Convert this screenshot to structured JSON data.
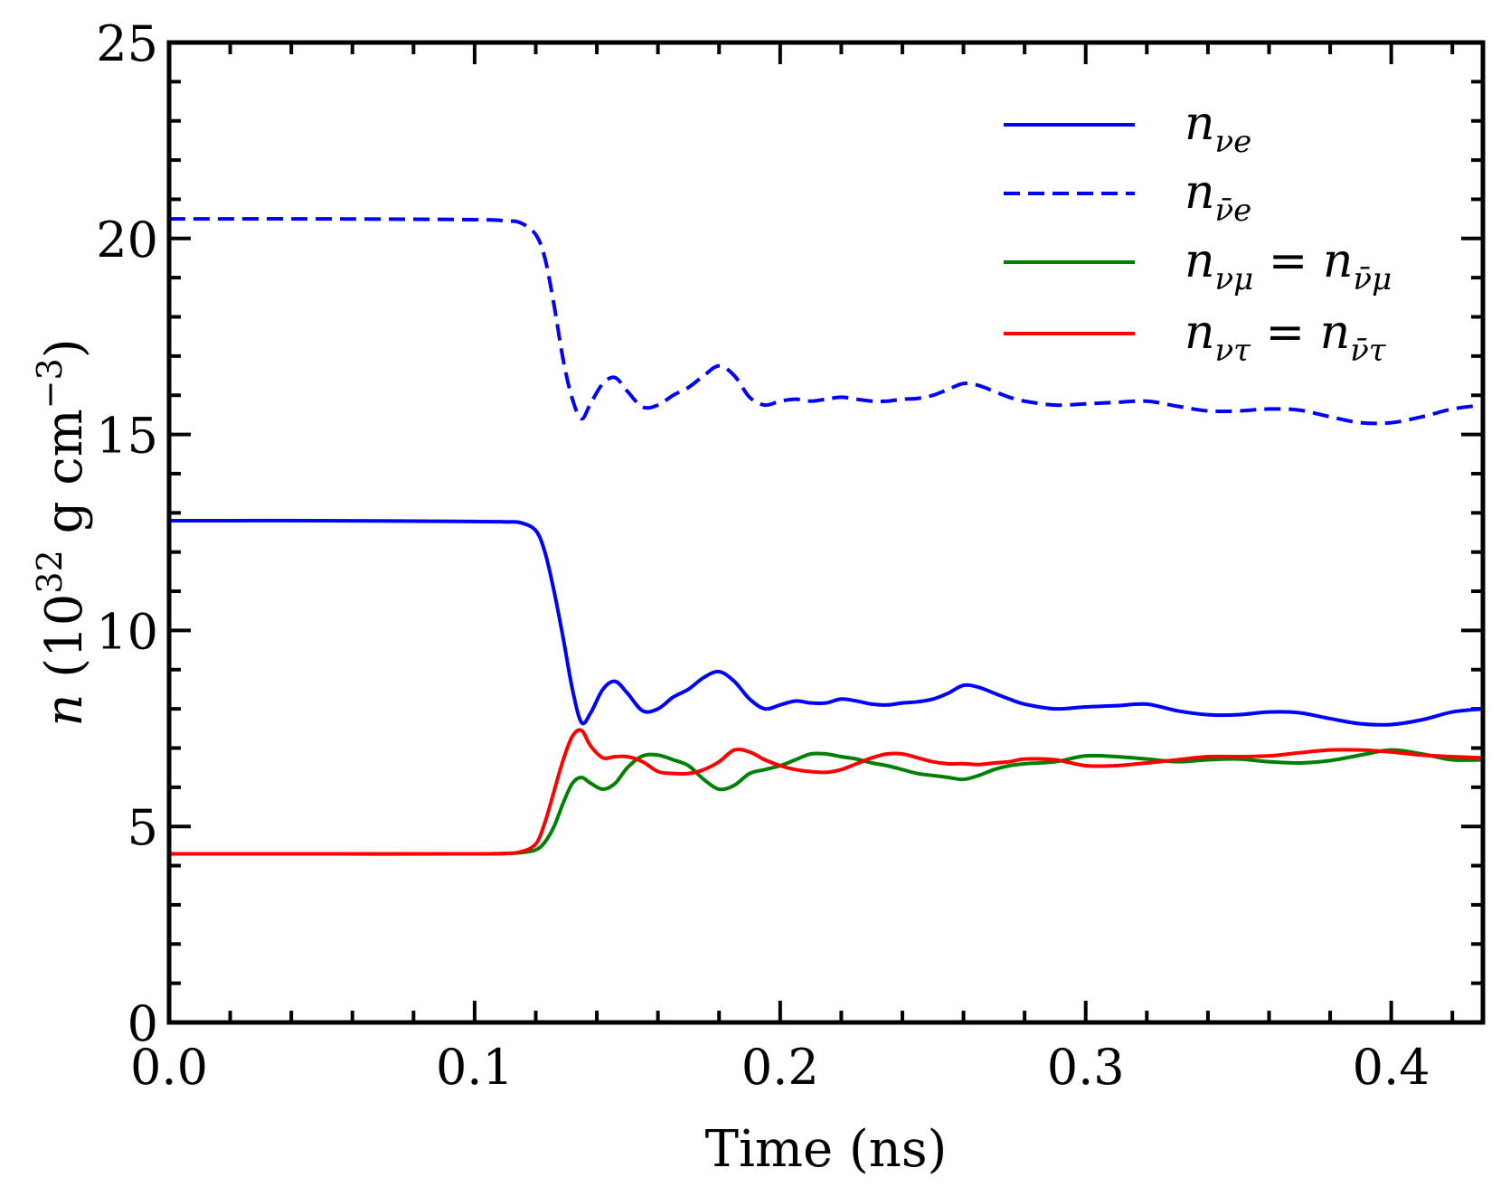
{
  "chart_data": {
    "type": "line",
    "title": "",
    "xlabel": "Time (ns)",
    "ylabel": "n (10^32 g cm^-3)",
    "xlim": [
      0.0,
      0.43
    ],
    "ylim": [
      0,
      25
    ],
    "xticks": [
      0.0,
      0.1,
      0.2,
      0.3,
      0.4
    ],
    "xtick_labels": [
      "0.0",
      "0.1",
      "0.2",
      "0.3",
      "0.4"
    ],
    "yticks": [
      0,
      5,
      10,
      15,
      20,
      25
    ],
    "ytick_labels": [
      "0",
      "5",
      "10",
      "15",
      "20",
      "25"
    ],
    "grid": false,
    "legend_position": "top-right",
    "series": [
      {
        "name": "n_νe",
        "label_base": "n",
        "label_sub": "νe",
        "color": "#0000ff",
        "style": "solid",
        "x": [
          0.0,
          0.05,
          0.1,
          0.11,
          0.115,
          0.12,
          0.123,
          0.126,
          0.129,
          0.132,
          0.135,
          0.138,
          0.142,
          0.146,
          0.15,
          0.155,
          0.16,
          0.165,
          0.17,
          0.175,
          0.18,
          0.185,
          0.19,
          0.195,
          0.2,
          0.205,
          0.21,
          0.215,
          0.22,
          0.225,
          0.23,
          0.235,
          0.24,
          0.245,
          0.25,
          0.255,
          0.26,
          0.265,
          0.27,
          0.275,
          0.28,
          0.29,
          0.3,
          0.31,
          0.32,
          0.33,
          0.34,
          0.35,
          0.36,
          0.37,
          0.38,
          0.39,
          0.4,
          0.41,
          0.42,
          0.43
        ],
        "y": [
          12.8,
          12.8,
          12.78,
          12.77,
          12.75,
          12.55,
          12.0,
          11.0,
          9.8,
          8.5,
          7.65,
          7.9,
          8.5,
          8.7,
          8.4,
          7.95,
          8.0,
          8.3,
          8.5,
          8.8,
          8.95,
          8.7,
          8.25,
          8.0,
          8.1,
          8.2,
          8.15,
          8.15,
          8.25,
          8.2,
          8.12,
          8.1,
          8.15,
          8.18,
          8.25,
          8.4,
          8.6,
          8.55,
          8.4,
          8.25,
          8.12,
          8.0,
          8.05,
          8.08,
          8.12,
          7.95,
          7.85,
          7.85,
          7.92,
          7.9,
          7.75,
          7.62,
          7.6,
          7.72,
          7.92,
          8.0
        ]
      },
      {
        "name": "n_ν̄e",
        "label_base": "n",
        "label_sub": "ν̄e",
        "color": "#0000ff",
        "style": "dashed",
        "x": [
          0.0,
          0.05,
          0.1,
          0.11,
          0.115,
          0.12,
          0.123,
          0.126,
          0.129,
          0.132,
          0.135,
          0.138,
          0.142,
          0.146,
          0.15,
          0.155,
          0.16,
          0.165,
          0.17,
          0.175,
          0.18,
          0.185,
          0.19,
          0.195,
          0.2,
          0.205,
          0.21,
          0.215,
          0.22,
          0.225,
          0.23,
          0.235,
          0.24,
          0.245,
          0.25,
          0.255,
          0.26,
          0.265,
          0.27,
          0.275,
          0.28,
          0.29,
          0.3,
          0.31,
          0.32,
          0.33,
          0.34,
          0.35,
          0.36,
          0.37,
          0.38,
          0.39,
          0.4,
          0.41,
          0.42,
          0.43
        ],
        "y": [
          20.5,
          20.5,
          20.48,
          20.45,
          20.4,
          20.1,
          19.5,
          18.3,
          16.9,
          15.9,
          15.4,
          15.8,
          16.3,
          16.45,
          16.1,
          15.7,
          15.75,
          16.0,
          16.2,
          16.5,
          16.75,
          16.5,
          15.95,
          15.75,
          15.85,
          15.9,
          15.85,
          15.9,
          15.95,
          15.9,
          15.85,
          15.85,
          15.9,
          15.92,
          16.0,
          16.15,
          16.3,
          16.25,
          16.1,
          15.95,
          15.85,
          15.75,
          15.78,
          15.82,
          15.85,
          15.72,
          15.6,
          15.6,
          15.65,
          15.62,
          15.45,
          15.3,
          15.3,
          15.45,
          15.65,
          15.75
        ]
      },
      {
        "name": "n_νμ = n_ν̄μ",
        "label_base": "n",
        "label_sub": "νμ",
        "label_eq_sub": "ν̄μ",
        "color": "#008000",
        "style": "solid",
        "x": [
          0.0,
          0.05,
          0.1,
          0.11,
          0.115,
          0.12,
          0.123,
          0.126,
          0.129,
          0.132,
          0.135,
          0.138,
          0.142,
          0.146,
          0.15,
          0.155,
          0.16,
          0.165,
          0.17,
          0.175,
          0.18,
          0.185,
          0.19,
          0.195,
          0.2,
          0.205,
          0.21,
          0.215,
          0.22,
          0.225,
          0.23,
          0.235,
          0.24,
          0.245,
          0.25,
          0.255,
          0.26,
          0.265,
          0.27,
          0.275,
          0.28,
          0.29,
          0.3,
          0.31,
          0.32,
          0.33,
          0.34,
          0.35,
          0.36,
          0.37,
          0.38,
          0.39,
          0.4,
          0.41,
          0.42,
          0.43
        ],
        "y": [
          4.3,
          4.3,
          4.3,
          4.31,
          4.33,
          4.4,
          4.6,
          5.0,
          5.6,
          6.1,
          6.25,
          6.1,
          5.95,
          6.1,
          6.5,
          6.8,
          6.82,
          6.7,
          6.55,
          6.2,
          5.95,
          6.05,
          6.35,
          6.45,
          6.55,
          6.7,
          6.85,
          6.85,
          6.78,
          6.72,
          6.62,
          6.55,
          6.45,
          6.35,
          6.3,
          6.25,
          6.2,
          6.3,
          6.45,
          6.55,
          6.6,
          6.65,
          6.8,
          6.78,
          6.72,
          6.65,
          6.7,
          6.72,
          6.65,
          6.62,
          6.68,
          6.82,
          6.95,
          6.85,
          6.7,
          6.7
        ]
      },
      {
        "name": "n_ντ = n_ν̄τ",
        "label_base": "n",
        "label_sub": "ντ",
        "label_eq_sub": "ν̄τ",
        "color": "#ff0000",
        "style": "solid",
        "x": [
          0.0,
          0.05,
          0.1,
          0.11,
          0.115,
          0.12,
          0.123,
          0.126,
          0.129,
          0.132,
          0.135,
          0.138,
          0.142,
          0.146,
          0.15,
          0.155,
          0.16,
          0.165,
          0.17,
          0.175,
          0.18,
          0.185,
          0.19,
          0.195,
          0.2,
          0.205,
          0.21,
          0.215,
          0.22,
          0.225,
          0.23,
          0.235,
          0.24,
          0.245,
          0.25,
          0.255,
          0.26,
          0.265,
          0.27,
          0.275,
          0.28,
          0.29,
          0.3,
          0.31,
          0.32,
          0.33,
          0.34,
          0.35,
          0.36,
          0.37,
          0.38,
          0.39,
          0.4,
          0.41,
          0.42,
          0.43
        ],
        "y": [
          4.3,
          4.3,
          4.3,
          4.31,
          4.35,
          4.55,
          5.1,
          5.9,
          6.7,
          7.3,
          7.45,
          7.05,
          6.75,
          6.78,
          6.78,
          6.65,
          6.4,
          6.35,
          6.35,
          6.45,
          6.65,
          6.95,
          6.9,
          6.7,
          6.55,
          6.45,
          6.4,
          6.38,
          6.45,
          6.6,
          6.75,
          6.85,
          6.85,
          6.75,
          6.65,
          6.6,
          6.6,
          6.58,
          6.62,
          6.65,
          6.72,
          6.7,
          6.55,
          6.55,
          6.62,
          6.7,
          6.78,
          6.78,
          6.8,
          6.88,
          6.95,
          6.95,
          6.9,
          6.82,
          6.78,
          6.75
        ]
      }
    ]
  }
}
